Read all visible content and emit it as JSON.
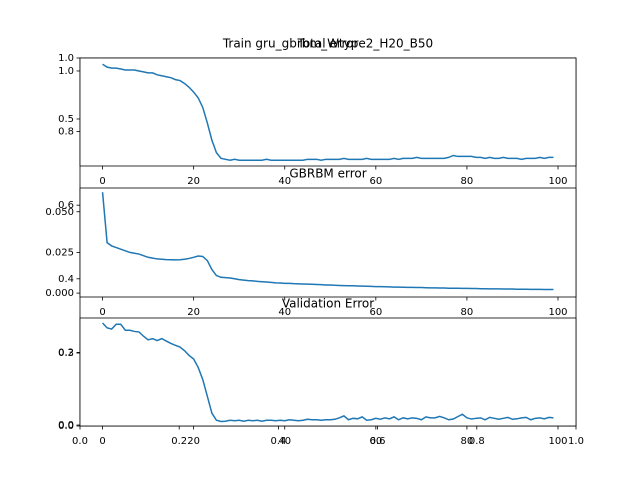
{
  "chart_data": [
    {
      "type": "axes",
      "title": "Train gru_gbrbm_Wtype2_H20_B50",
      "xlim": [
        0,
        1
      ],
      "ylim": [
        0,
        1
      ],
      "xticks": [
        {
          "value": 0,
          "label": "0.0"
        },
        0.2,
        0.4,
        0.6,
        0.8,
        {
          "value": 1,
          "label": "1.0"
        }
      ],
      "yticks": [
        {
          "value": 0,
          "label": "0.0"
        },
        0.2,
        0.4,
        0.6,
        0.8,
        {
          "value": 1,
          "label": "1.0"
        }
      ]
    },
    {
      "type": "line",
      "title": "Total error",
      "color": "#1f77b4",
      "xlim": [
        -4.95,
        103.95
      ],
      "ylim": [
        0.0104,
        1.135
      ],
      "xticks": [
        0,
        20,
        40,
        60,
        80,
        100
      ],
      "yticks": [
        0.5,
        {
          "value": 1,
          "label": "1.0"
        }
      ],
      "x": [
        0,
        1,
        2,
        3,
        4,
        5,
        6,
        7,
        8,
        9,
        10,
        11,
        12,
        13,
        14,
        15,
        16,
        17,
        18,
        19,
        20,
        21,
        22,
        23,
        24,
        25,
        26,
        27,
        28,
        29,
        30,
        31,
        32,
        33,
        34,
        35,
        36,
        37,
        38,
        39,
        40,
        41,
        42,
        43,
        44,
        45,
        46,
        47,
        48,
        49,
        50,
        51,
        52,
        53,
        54,
        55,
        56,
        57,
        58,
        59,
        60,
        61,
        62,
        63,
        64,
        65,
        66,
        67,
        68,
        69,
        70,
        71,
        72,
        73,
        74,
        75,
        76,
        77,
        78,
        79,
        80,
        81,
        82,
        83,
        84,
        85,
        86,
        87,
        88,
        89,
        90,
        91,
        92,
        93,
        94,
        95,
        96,
        97,
        98,
        99
      ],
      "values": [
        1.07,
        1.04,
        1.03,
        1.03,
        1.02,
        1.01,
        1.01,
        1.01,
        1.0,
        0.99,
        0.98,
        0.98,
        0.96,
        0.95,
        0.94,
        0.93,
        0.91,
        0.9,
        0.87,
        0.83,
        0.78,
        0.72,
        0.62,
        0.46,
        0.28,
        0.15,
        0.09,
        0.08,
        0.07,
        0.08,
        0.07,
        0.07,
        0.07,
        0.07,
        0.07,
        0.07,
        0.08,
        0.07,
        0.07,
        0.07,
        0.07,
        0.07,
        0.07,
        0.07,
        0.07,
        0.08,
        0.08,
        0.08,
        0.07,
        0.08,
        0.08,
        0.08,
        0.08,
        0.09,
        0.08,
        0.08,
        0.08,
        0.08,
        0.09,
        0.08,
        0.08,
        0.08,
        0.08,
        0.08,
        0.09,
        0.08,
        0.09,
        0.09,
        0.09,
        0.1,
        0.09,
        0.09,
        0.09,
        0.09,
        0.09,
        0.09,
        0.1,
        0.12,
        0.11,
        0.11,
        0.11,
        0.11,
        0.1,
        0.1,
        0.09,
        0.1,
        0.09,
        0.09,
        0.1,
        0.09,
        0.09,
        0.09,
        0.08,
        0.09,
        0.09,
        0.09,
        0.1,
        0.09,
        0.1,
        0.1
      ]
    },
    {
      "type": "line",
      "title": "GBRBM error",
      "color": "#1f77b4",
      "xlim": [
        -4.95,
        103.95
      ],
      "ylim": [
        -0.0024,
        0.0646
      ],
      "xticks": [
        0,
        20,
        40,
        60,
        80,
        100
      ],
      "yticks": [
        {
          "value": 0,
          "label": "0.000"
        },
        0.025,
        {
          "value": 0.05,
          "label": "0.050"
        }
      ],
      "x": [
        0,
        1,
        2,
        3,
        4,
        5,
        6,
        7,
        8,
        9,
        10,
        11,
        12,
        13,
        14,
        15,
        16,
        17,
        18,
        19,
        20,
        21,
        22,
        23,
        24,
        25,
        26,
        27,
        28,
        29,
        30,
        31,
        32,
        33,
        34,
        35,
        36,
        37,
        38,
        39,
        40,
        41,
        42,
        43,
        44,
        45,
        46,
        47,
        48,
        49,
        50,
        51,
        52,
        53,
        54,
        55,
        56,
        57,
        58,
        59,
        60,
        61,
        62,
        63,
        64,
        65,
        66,
        67,
        68,
        69,
        70,
        71,
        72,
        73,
        74,
        75,
        76,
        77,
        78,
        79,
        80,
        81,
        82,
        83,
        84,
        85,
        86,
        87,
        88,
        89,
        90,
        91,
        92,
        93,
        94,
        95,
        96,
        97,
        98,
        99
      ],
      "values": [
        0.062,
        0.031,
        0.029,
        0.028,
        0.027,
        0.026,
        0.025,
        0.0245,
        0.024,
        0.023,
        0.022,
        0.0215,
        0.021,
        0.0208,
        0.0206,
        0.0205,
        0.0204,
        0.0205,
        0.0208,
        0.0213,
        0.022,
        0.0228,
        0.0225,
        0.02,
        0.0145,
        0.0108,
        0.0097,
        0.0095,
        0.0093,
        0.0088,
        0.0083,
        0.008,
        0.0077,
        0.0075,
        0.0072,
        0.007,
        0.0068,
        0.0066,
        0.0063,
        0.0062,
        0.006,
        0.006,
        0.0058,
        0.0057,
        0.0056,
        0.0055,
        0.0054,
        0.0053,
        0.0052,
        0.005,
        0.005,
        0.0048,
        0.0047,
        0.0046,
        0.0045,
        0.0045,
        0.0044,
        0.0043,
        0.0042,
        0.0041,
        0.004,
        0.004,
        0.0039,
        0.0038,
        0.0037,
        0.0037,
        0.0036,
        0.0035,
        0.0035,
        0.0034,
        0.0034,
        0.0033,
        0.0032,
        0.0032,
        0.0031,
        0.0031,
        0.003,
        0.003,
        0.003,
        0.0029,
        0.0029,
        0.0028,
        0.0028,
        0.0027,
        0.0027,
        0.0026,
        0.0026,
        0.0026,
        0.0025,
        0.0025,
        0.0025,
        0.0024,
        0.0024,
        0.0024,
        0.0023,
        0.0023,
        0.0023,
        0.0022,
        0.0022,
        0.0022
      ]
    },
    {
      "type": "line",
      "title": "Validation Error",
      "color": "#1f77b4",
      "xlim": [
        -4.95,
        103.95
      ],
      "ylim": [
        -0.004,
        0.446
      ],
      "xticks": [
        0,
        20,
        40,
        60,
        80,
        100
      ],
      "yticks": [
        {
          "value": 0,
          "label": "0.0"
        },
        0.3
      ],
      "x": [
        0,
        1,
        2,
        3,
        4,
        5,
        6,
        7,
        8,
        9,
        10,
        11,
        12,
        13,
        14,
        15,
        16,
        17,
        18,
        19,
        20,
        21,
        22,
        23,
        24,
        25,
        26,
        27,
        28,
        29,
        30,
        31,
        32,
        33,
        34,
        35,
        36,
        37,
        38,
        39,
        40,
        41,
        42,
        43,
        44,
        45,
        46,
        47,
        48,
        49,
        50,
        51,
        52,
        53,
        54,
        55,
        56,
        57,
        58,
        59,
        60,
        61,
        62,
        63,
        64,
        65,
        66,
        67,
        68,
        69,
        70,
        71,
        72,
        73,
        74,
        75,
        76,
        77,
        78,
        79,
        80,
        81,
        82,
        83,
        84,
        85,
        86,
        87,
        88,
        89,
        90,
        91,
        92,
        93,
        94,
        95,
        96,
        97,
        98,
        99
      ],
      "values": [
        0.425,
        0.405,
        0.4,
        0.42,
        0.42,
        0.395,
        0.395,
        0.39,
        0.388,
        0.37,
        0.355,
        0.36,
        0.352,
        0.36,
        0.35,
        0.34,
        0.332,
        0.325,
        0.31,
        0.29,
        0.275,
        0.24,
        0.19,
        0.12,
        0.05,
        0.02,
        0.015,
        0.016,
        0.02,
        0.018,
        0.02,
        0.016,
        0.02,
        0.018,
        0.02,
        0.016,
        0.02,
        0.02,
        0.018,
        0.02,
        0.018,
        0.022,
        0.02,
        0.018,
        0.02,
        0.024,
        0.022,
        0.022,
        0.02,
        0.022,
        0.022,
        0.024,
        0.03,
        0.038,
        0.022,
        0.028,
        0.026,
        0.034,
        0.02,
        0.022,
        0.028,
        0.024,
        0.03,
        0.026,
        0.034,
        0.022,
        0.03,
        0.026,
        0.03,
        0.028,
        0.022,
        0.034,
        0.03,
        0.03,
        0.036,
        0.03,
        0.022,
        0.025,
        0.035,
        0.045,
        0.03,
        0.025,
        0.028,
        0.03,
        0.022,
        0.032,
        0.028,
        0.024,
        0.028,
        0.032,
        0.024,
        0.026,
        0.03,
        0.032,
        0.022,
        0.028,
        0.03,
        0.026,
        0.032,
        0.03
      ]
    }
  ]
}
